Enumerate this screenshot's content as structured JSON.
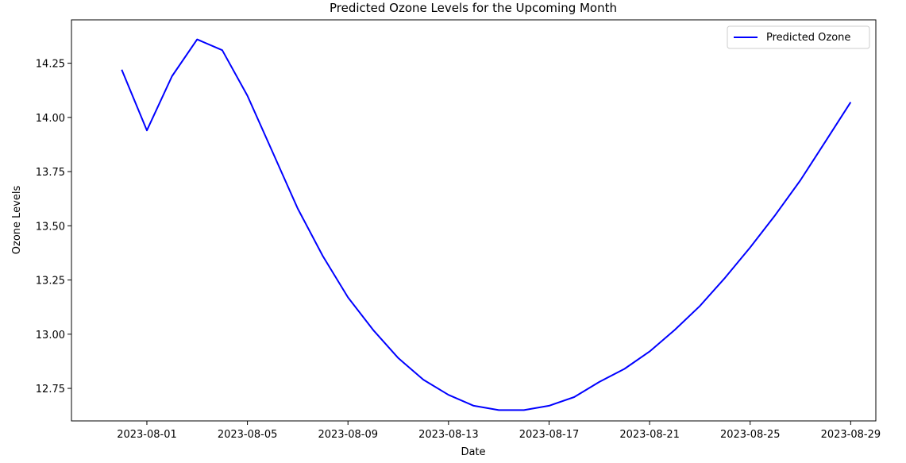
{
  "chart_data": {
    "type": "line",
    "title": "Predicted Ozone Levels for the Upcoming Month",
    "xlabel": "Date",
    "ylabel": "Ozone Levels",
    "x_axis_type": "date",
    "xlim": [
      "2023-07-29",
      "2023-08-30"
    ],
    "ylim": [
      12.6,
      14.45
    ],
    "x_ticks": [
      "2023-08-01",
      "2023-08-05",
      "2023-08-09",
      "2023-08-13",
      "2023-08-17",
      "2023-08-21",
      "2023-08-25",
      "2023-08-29"
    ],
    "y_ticks": [
      "12.75",
      "13.00",
      "13.25",
      "13.50",
      "13.75",
      "14.00",
      "14.25"
    ],
    "grid": false,
    "legend_position": "top-right",
    "series": [
      {
        "name": "Predicted Ozone",
        "color": "#0000ff",
        "points": [
          {
            "x": "2023-07-31",
            "y": 14.22
          },
          {
            "x": "2023-08-01",
            "y": 13.94
          },
          {
            "x": "2023-08-02",
            "y": 14.19
          },
          {
            "x": "2023-08-03",
            "y": 14.36
          },
          {
            "x": "2023-08-04",
            "y": 14.31
          },
          {
            "x": "2023-08-05",
            "y": 14.1
          },
          {
            "x": "2023-08-06",
            "y": 13.84
          },
          {
            "x": "2023-08-07",
            "y": 13.58
          },
          {
            "x": "2023-08-08",
            "y": 13.36
          },
          {
            "x": "2023-08-09",
            "y": 13.17
          },
          {
            "x": "2023-08-10",
            "y": 13.02
          },
          {
            "x": "2023-08-11",
            "y": 12.89
          },
          {
            "x": "2023-08-12",
            "y": 12.79
          },
          {
            "x": "2023-08-13",
            "y": 12.72
          },
          {
            "x": "2023-08-14",
            "y": 12.67
          },
          {
            "x": "2023-08-15",
            "y": 12.65
          },
          {
            "x": "2023-08-16",
            "y": 12.65
          },
          {
            "x": "2023-08-17",
            "y": 12.67
          },
          {
            "x": "2023-08-18",
            "y": 12.71
          },
          {
            "x": "2023-08-19",
            "y": 12.78
          },
          {
            "x": "2023-08-20",
            "y": 12.84
          },
          {
            "x": "2023-08-21",
            "y": 12.92
          },
          {
            "x": "2023-08-22",
            "y": 13.02
          },
          {
            "x": "2023-08-23",
            "y": 13.13
          },
          {
            "x": "2023-08-24",
            "y": 13.26
          },
          {
            "x": "2023-08-25",
            "y": 13.4
          },
          {
            "x": "2023-08-26",
            "y": 13.55
          },
          {
            "x": "2023-08-27",
            "y": 13.71
          },
          {
            "x": "2023-08-28",
            "y": 13.89
          },
          {
            "x": "2023-08-29",
            "y": 14.07
          }
        ]
      }
    ]
  }
}
